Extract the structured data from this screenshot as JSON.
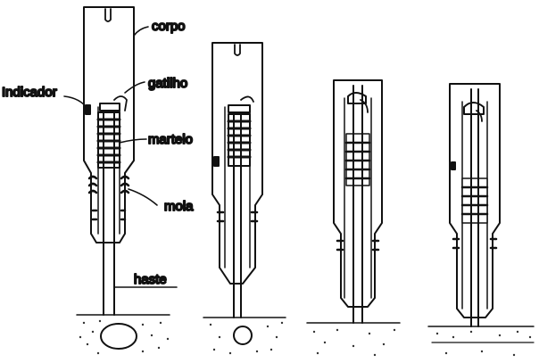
{
  "labels": {
    "corpo": "corpo",
    "gatilho": "gatilho",
    "indicador": "Indicador",
    "martelo": "martelo",
    "mola": "mola",
    "haste": "haste"
  },
  "colors": {
    "ink": "#111111",
    "fill_dark": "#222222",
    "stipple": "#333333"
  }
}
